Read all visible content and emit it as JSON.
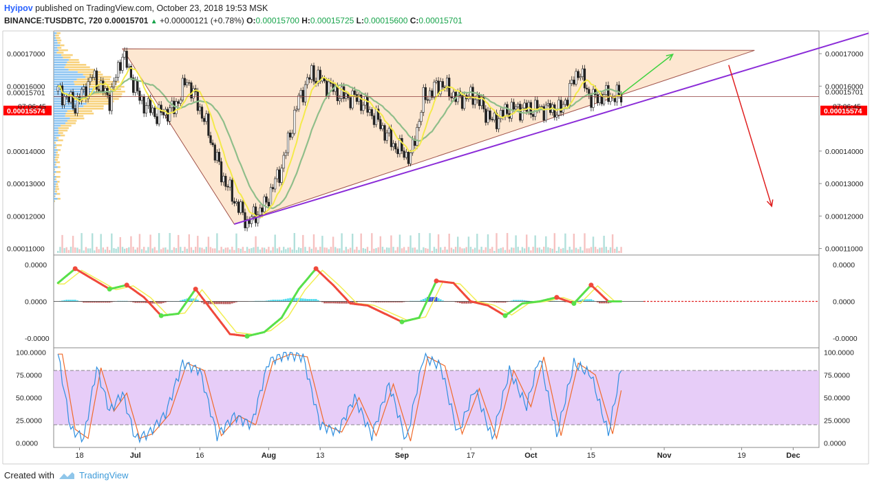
{
  "header": {
    "author": "Hyipov",
    "published": "published on TradingView.com, October 23, 2018 19:53 MSK",
    "symbol": "BINANCE:TUSDBTC, 720",
    "last": "0.00015701",
    "change": "+0.00000121 (+0.78%)",
    "o_label": "O:",
    "o_value": "0.00015700",
    "h_label": "H:",
    "h_value": "0.00015725",
    "l_label": "L:",
    "l_value": "0.00015600",
    "c_label": "C:",
    "c_value": "0.00015701"
  },
  "footer": {
    "created_with": "Created with",
    "brand": "TradingView"
  },
  "colors": {
    "up": "#26a69a",
    "down": "#ef5350",
    "triangle_fill": "#fde3c9",
    "trend_support": "#8b2cd8",
    "stoch_band": "#e4c8f7"
  },
  "chart_data": [
    {
      "type": "line",
      "panel": "price",
      "price_axis_labels": [
        "0.00017000",
        "0.00016000",
        "0.00015701",
        "0.00015574",
        "0.00014000",
        "0.00013000",
        "0.00012000",
        "0.00011000"
      ],
      "countdown": "07:06:45",
      "current_price_tag": "0.00015574",
      "last_price_tag": "0.00015701",
      "x_tick_labels": [
        "18",
        "Jul",
        "16",
        "Aug",
        "13",
        "Sep",
        "17",
        "Oct",
        "15",
        "Nov",
        "19",
        "Dec"
      ],
      "x_range": [
        "2018-06-12",
        "2018-12-07"
      ],
      "ylim": [
        0.000108,
        0.000177
      ],
      "close_series": {
        "dates": [
          "2018-06-13",
          "2018-06-17",
          "2018-06-21",
          "2018-06-25",
          "2018-06-28",
          "2018-07-02",
          "2018-07-06",
          "2018-07-10",
          "2018-07-13",
          "2018-07-17",
          "2018-07-21",
          "2018-07-24",
          "2018-07-27",
          "2018-07-31",
          "2018-08-04",
          "2018-08-08",
          "2018-08-11",
          "2018-08-14",
          "2018-08-18",
          "2018-08-22",
          "2018-08-26",
          "2018-08-30",
          "2018-09-03",
          "2018-09-06",
          "2018-09-10",
          "2018-09-14",
          "2018-09-18",
          "2018-09-22",
          "2018-09-26",
          "2018-09-30",
          "2018-10-04",
          "2018-10-08",
          "2018-10-12",
          "2018-10-15",
          "2018-10-18",
          "2018-10-22"
        ],
        "values": [
          0.0001585,
          0.000154,
          0.000163,
          0.000156,
          0.00017,
          0.000156,
          0.000151,
          0.000153,
          0.000162,
          0.00015,
          0.000133,
          0.000125,
          0.000118,
          0.000123,
          0.000135,
          0.000156,
          0.000164,
          0.000161,
          0.000157,
          0.000156,
          0.00015,
          0.000142,
          0.000138,
          0.000156,
          0.000161,
          0.000156,
          0.000157,
          0.000149,
          0.000153,
          0.000153,
          0.000153,
          0.0001525,
          0.000165,
          0.000156,
          0.000157,
          0.000157
        ]
      },
      "annotations": {
        "triangle": {
          "points": [
            [
              "2018-06-28",
              0.0001715
            ],
            [
              "2018-07-24",
              0.0001175
            ],
            [
              "2018-11-22",
              0.000171
            ]
          ]
        },
        "support_line": {
          "from": [
            "2018-07-24",
            0.0001175
          ],
          "to": [
            "2018-12-07",
            0.0001763
          ]
        },
        "horizontal_line": 0.0001568,
        "up_arrow": {
          "from": [
            "2018-10-22",
            0.0001575
          ],
          "to": [
            "2018-11-03",
            0.0001698
          ]
        },
        "down_arrow": {
          "from": [
            "2018-11-16",
            0.0001665
          ],
          "to": [
            "2018-11-26",
            0.000123
          ]
        }
      }
    },
    {
      "type": "line",
      "panel": "oscillator",
      "axis_labels": [
        "0.0000",
        "0.0000",
        "-0.0000"
      ],
      "ylim": [
        -1,
        1
      ],
      "dates": [
        "2018-06-13",
        "2018-06-17",
        "2018-06-21",
        "2018-06-25",
        "2018-06-29",
        "2018-07-03",
        "2018-07-07",
        "2018-07-11",
        "2018-07-15",
        "2018-07-19",
        "2018-07-23",
        "2018-07-27",
        "2018-07-31",
        "2018-08-04",
        "2018-08-08",
        "2018-08-12",
        "2018-08-16",
        "2018-08-20",
        "2018-08-24",
        "2018-08-28",
        "2018-09-01",
        "2018-09-05",
        "2018-09-09",
        "2018-09-13",
        "2018-09-17",
        "2018-09-21",
        "2018-09-25",
        "2018-09-29",
        "2018-10-03",
        "2018-10-07",
        "2018-10-11",
        "2018-10-15",
        "2018-10-19",
        "2018-10-22"
      ],
      "values": [
        0.45,
        0.8,
        0.55,
        0.3,
        0.4,
        0.1,
        -0.35,
        -0.3,
        0.3,
        -0.25,
        -0.8,
        -0.85,
        -0.75,
        -0.4,
        0.3,
        0.8,
        0.4,
        -0.05,
        -0.1,
        -0.3,
        -0.5,
        -0.4,
        0.5,
        0.45,
        0.0,
        -0.1,
        -0.35,
        -0.05,
        0.0,
        0.1,
        -0.05,
        0.4,
        0.0,
        0.0
      ]
    },
    {
      "type": "line",
      "panel": "stochastic",
      "axis_labels": [
        "100.0000",
        "75.0000",
        "50.0000",
        "25.0000",
        "0.0000"
      ],
      "ylim": [
        -5,
        105
      ],
      "band": [
        20,
        80
      ],
      "dates": [
        "2018-06-13",
        "2018-06-16",
        "2018-06-19",
        "2018-06-22",
        "2018-06-25",
        "2018-06-28",
        "2018-07-01",
        "2018-07-04",
        "2018-07-08",
        "2018-07-12",
        "2018-07-16",
        "2018-07-20",
        "2018-07-24",
        "2018-07-28",
        "2018-08-01",
        "2018-08-05",
        "2018-08-09",
        "2018-08-13",
        "2018-08-17",
        "2018-08-21",
        "2018-08-25",
        "2018-08-29",
        "2018-09-02",
        "2018-09-06",
        "2018-09-10",
        "2018-09-14",
        "2018-09-18",
        "2018-09-22",
        "2018-09-26",
        "2018-09-30",
        "2018-10-03",
        "2018-10-07",
        "2018-10-11",
        "2018-10-15",
        "2018-10-19",
        "2018-10-22"
      ],
      "values": [
        98,
        15,
        5,
        83,
        35,
        55,
        5,
        10,
        32,
        88,
        80,
        8,
        30,
        20,
        90,
        98,
        95,
        20,
        12,
        50,
        8,
        65,
        2,
        95,
        85,
        10,
        60,
        5,
        80,
        40,
        95,
        8,
        88,
        75,
        10,
        82
      ]
    }
  ]
}
